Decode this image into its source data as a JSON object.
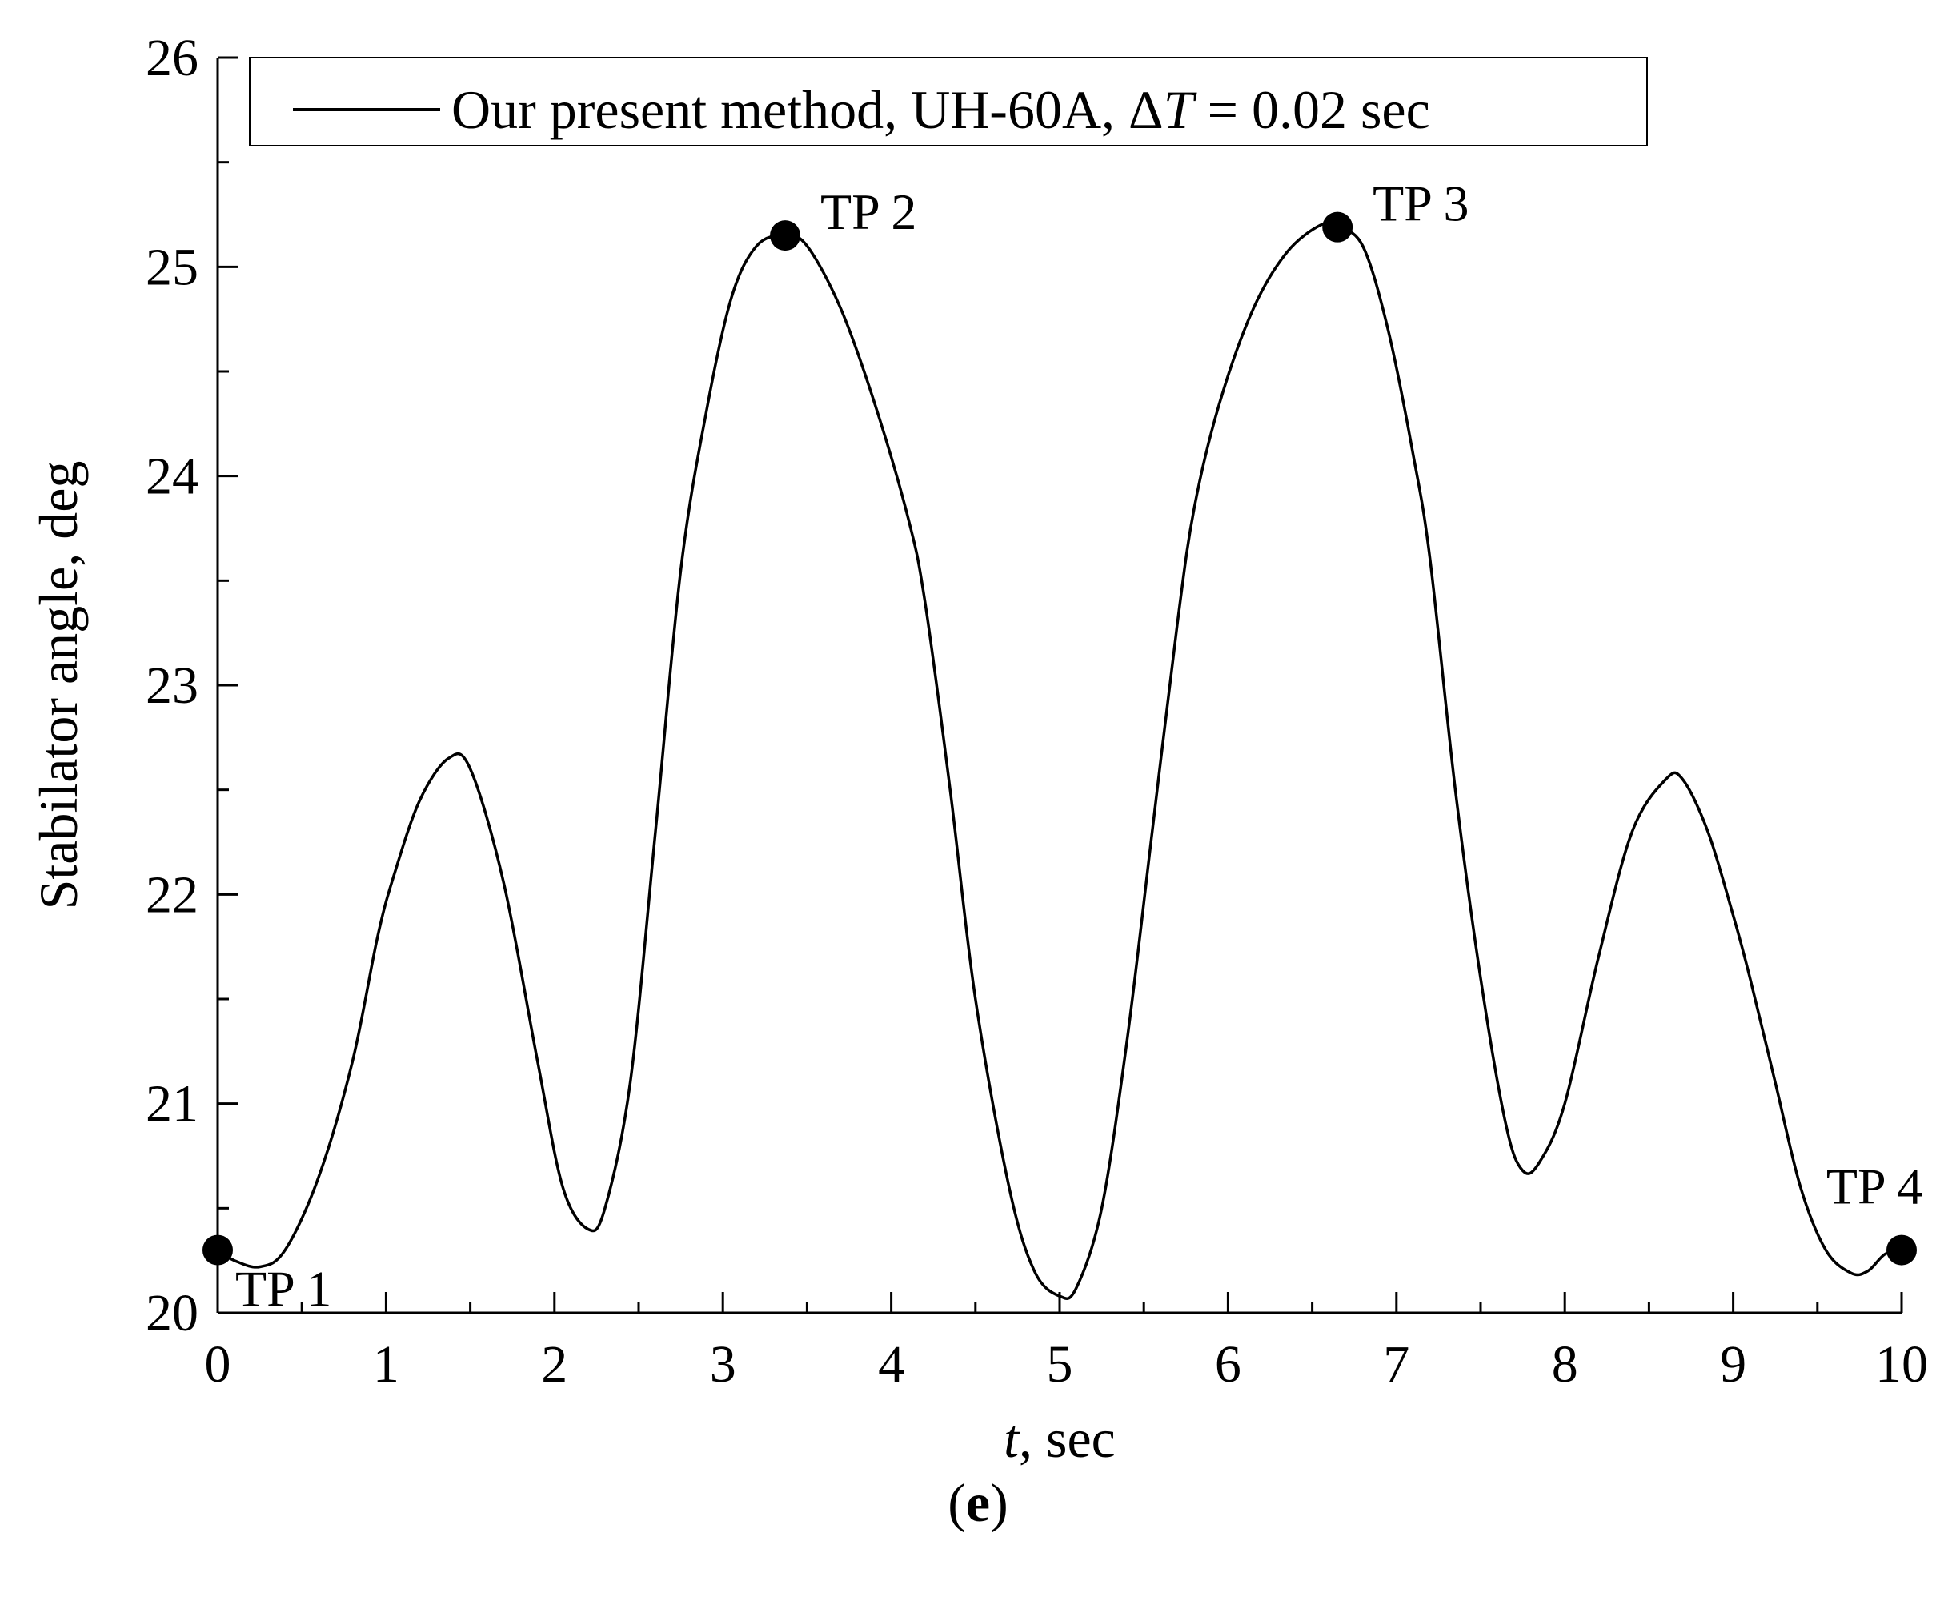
{
  "chart_data": {
    "type": "line",
    "title": "",
    "xlabel_italic": "t",
    "xlabel_rest": ", sec",
    "ylabel": "Stabilator angle, deg",
    "xlim": [
      0,
      10
    ],
    "ylim": [
      20,
      26
    ],
    "xticks": [
      "0",
      "1",
      "2",
      "3",
      "4",
      "5",
      "6",
      "7",
      "8",
      "9",
      "10"
    ],
    "yticks": [
      "20",
      "21",
      "22",
      "23",
      "24",
      "25",
      "26"
    ],
    "x_minor_step": 0.5,
    "y_minor_step": 0.5,
    "grid": false,
    "legend_position": "top",
    "legend": {
      "text_before": "Our present method, UH-60A, Δ",
      "text_italic": "T",
      "text_after": " = 0.02 sec"
    },
    "series": [
      {
        "name": "Our present method, UH-60A, ΔT = 0.02 sec",
        "color": "#000000",
        "points": [
          [
            0,
            20.3
          ],
          [
            0.1,
            20.25
          ],
          [
            0.25,
            20.22
          ],
          [
            0.4,
            20.3
          ],
          [
            0.6,
            20.65
          ],
          [
            0.8,
            21.2
          ],
          [
            0.95,
            21.8
          ],
          [
            1.05,
            22.1
          ],
          [
            1.2,
            22.45
          ],
          [
            1.37,
            22.65
          ],
          [
            1.5,
            22.6
          ],
          [
            1.7,
            22.05
          ],
          [
            1.9,
            21.2
          ],
          [
            2.05,
            20.6
          ],
          [
            2.2,
            20.4
          ],
          [
            2.3,
            20.5
          ],
          [
            2.45,
            21.1
          ],
          [
            2.6,
            22.3
          ],
          [
            2.75,
            23.55
          ],
          [
            2.9,
            24.3
          ],
          [
            3.05,
            24.85
          ],
          [
            3.2,
            25.1
          ],
          [
            3.37,
            25.15
          ],
          [
            3.5,
            25.1
          ],
          [
            3.7,
            24.8
          ],
          [
            3.9,
            24.35
          ],
          [
            4.1,
            23.8
          ],
          [
            4.2,
            23.4
          ],
          [
            4.35,
            22.5
          ],
          [
            4.5,
            21.5
          ],
          [
            4.7,
            20.6
          ],
          [
            4.85,
            20.2
          ],
          [
            5.0,
            20.08
          ],
          [
            5.1,
            20.12
          ],
          [
            5.25,
            20.5
          ],
          [
            5.4,
            21.3
          ],
          [
            5.55,
            22.3
          ],
          [
            5.7,
            23.3
          ],
          [
            5.8,
            23.85
          ],
          [
            5.95,
            24.35
          ],
          [
            6.15,
            24.8
          ],
          [
            6.35,
            25.07
          ],
          [
            6.55,
            25.2
          ],
          [
            6.65,
            25.19
          ],
          [
            6.8,
            25.1
          ],
          [
            6.95,
            24.7
          ],
          [
            7.1,
            24.1
          ],
          [
            7.2,
            23.6
          ],
          [
            7.35,
            22.5
          ],
          [
            7.5,
            21.6
          ],
          [
            7.65,
            20.9
          ],
          [
            7.75,
            20.68
          ],
          [
            7.85,
            20.72
          ],
          [
            8.0,
            21.0
          ],
          [
            8.2,
            21.7
          ],
          [
            8.4,
            22.3
          ],
          [
            8.6,
            22.55
          ],
          [
            8.7,
            22.55
          ],
          [
            8.85,
            22.3
          ],
          [
            9.0,
            21.9
          ],
          [
            9.1,
            21.6
          ],
          [
            9.25,
            21.1
          ],
          [
            9.4,
            20.6
          ],
          [
            9.55,
            20.3
          ],
          [
            9.7,
            20.19
          ],
          [
            9.8,
            20.2
          ],
          [
            9.9,
            20.28
          ],
          [
            10.0,
            20.3
          ]
        ]
      }
    ],
    "markers": [
      {
        "label": "TP 1",
        "x": 0.0,
        "y": 20.3
      },
      {
        "label": "TP 2",
        "x": 3.37,
        "y": 25.15
      },
      {
        "label": "TP 3",
        "x": 6.65,
        "y": 25.19
      },
      {
        "label": "TP 4",
        "x": 10.0,
        "y": 20.3
      }
    ]
  },
  "panel_label": "e"
}
